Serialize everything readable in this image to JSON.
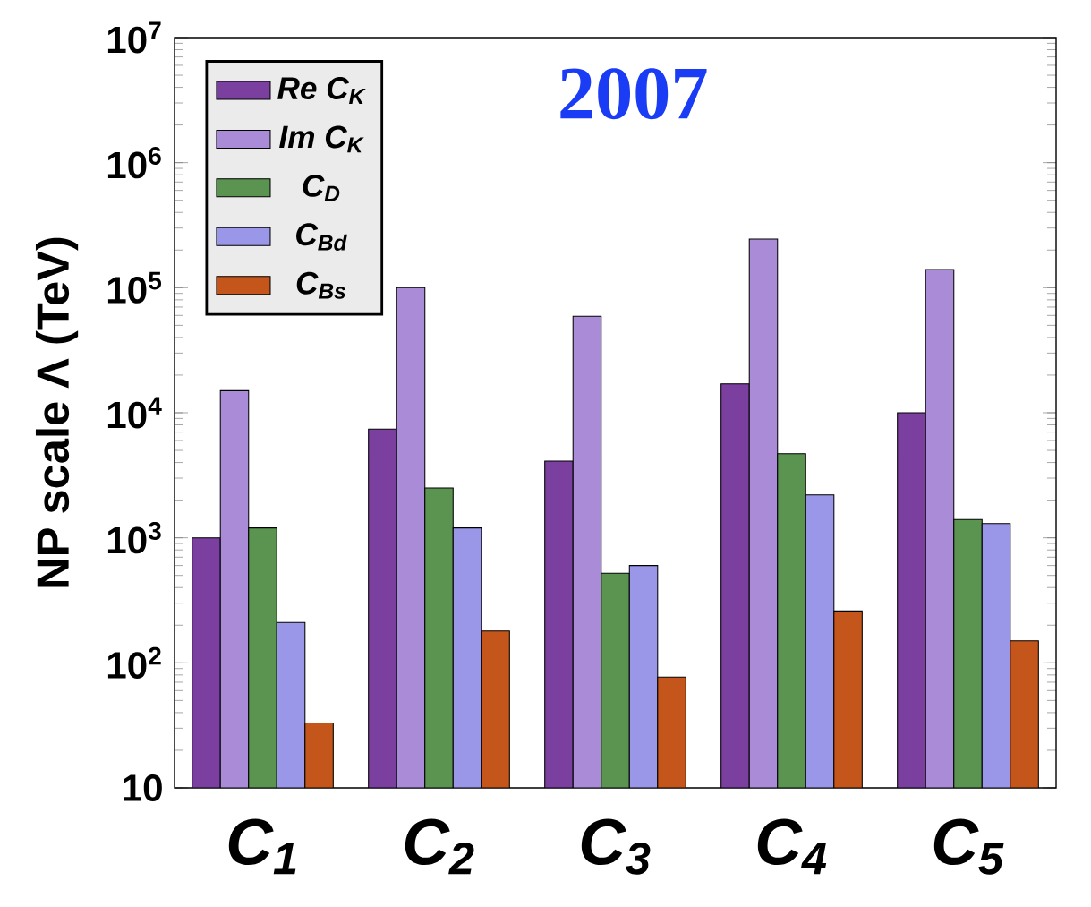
{
  "chart_data": {
    "type": "bar",
    "title": "2007",
    "ylabel": "NP scale Λ (TeV)",
    "categories": [
      "C$_{1}$",
      "C$_{2}$",
      "C$_{3}$",
      "C$_{4}$",
      "C$_{5}$"
    ],
    "series": [
      {
        "name": "Re C$_{K}$",
        "color": "#7b3fa0",
        "values": [
          1000,
          7400,
          4100,
          17000,
          10000
        ]
      },
      {
        "name": "Im C$_{K}$",
        "color": "#a98bd8",
        "values": [
          15000,
          100000,
          59000,
          245000,
          140000
        ]
      },
      {
        "name": "C$_{D}$",
        "color": "#5a9450",
        "values": [
          1200,
          2500,
          520,
          4700,
          1400
        ]
      },
      {
        "name": "C$_{Bd}$",
        "color": "#9b97e8",
        "values": [
          210,
          1200,
          600,
          2200,
          1300
        ]
      },
      {
        "name": "C$_{Bs}$",
        "color": "#c4561b",
        "values": [
          33,
          180,
          77,
          260,
          150
        ]
      }
    ],
    "log": "y",
    "ylim": [
      10,
      10000000
    ],
    "yticks": [
      10,
      {
        "value": 100,
        "label": "10$^{2}$"
      },
      {
        "value": 1000,
        "label": "10$^{3}$"
      },
      {
        "value": 10000,
        "label": "10$^{4}$"
      },
      {
        "value": 100000,
        "label": "10$^{5}$"
      },
      {
        "value": 1000000,
        "label": "10$^{6}$"
      },
      {
        "value": 10000000,
        "label": "10$^{7}$"
      }
    ],
    "legend": "top left",
    "grid": false
  }
}
